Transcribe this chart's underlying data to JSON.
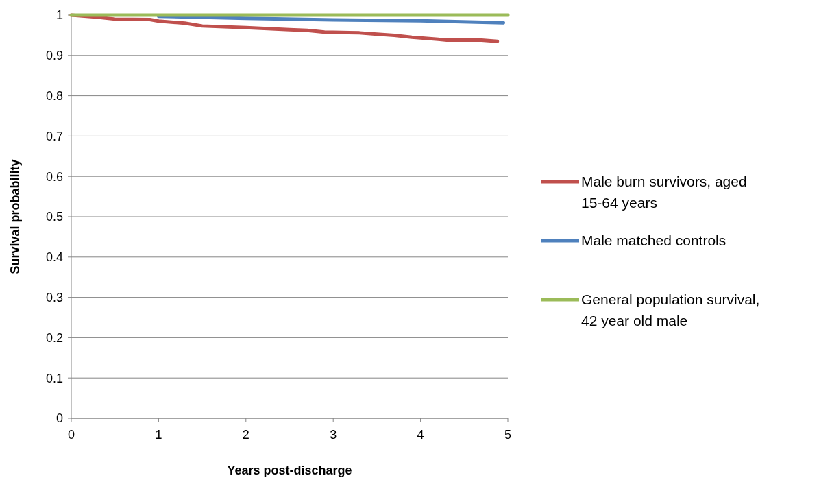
{
  "chart_data": {
    "type": "line",
    "xlabel": "Years post-discharge",
    "ylabel": "Survival probability",
    "xlim": [
      0,
      5
    ],
    "xticks": [
      0,
      1,
      2,
      3,
      4,
      5
    ],
    "ylim": [
      0,
      1
    ],
    "yticks": [
      0,
      0.1,
      0.2,
      0.3,
      0.4,
      0.5,
      0.6,
      0.7,
      0.8,
      0.9,
      1
    ],
    "grid": "y",
    "legend": "right",
    "series": [
      {
        "name": "Male burn survivors, aged 15-64 years",
        "color": "#c0504d",
        "x": [
          0,
          0.3,
          0.5,
          0.9,
          1,
          1.3,
          1.5,
          2,
          2.5,
          2.7,
          2.9,
          3.3,
          3.5,
          3.7,
          3.9,
          4.2,
          4.3,
          4.7,
          4.88
        ],
        "values": [
          1,
          0.995,
          0.99,
          0.989,
          0.985,
          0.98,
          0.973,
          0.969,
          0.964,
          0.962,
          0.958,
          0.956,
          0.953,
          0.95,
          0.945,
          0.94,
          0.938,
          0.938,
          0.935
        ]
      },
      {
        "name": "Male matched controls",
        "color": "#4f81bd",
        "x": [
          1,
          2,
          3,
          4,
          4.95
        ],
        "values": [
          0.997,
          0.992,
          0.988,
          0.986,
          0.981
        ]
      },
      {
        "name": "General population survival, 42 year old male",
        "color": "#9bbb59",
        "x": [
          0,
          1,
          2,
          3,
          4,
          5
        ],
        "values": [
          1,
          1,
          1,
          1,
          1,
          1
        ]
      }
    ]
  }
}
